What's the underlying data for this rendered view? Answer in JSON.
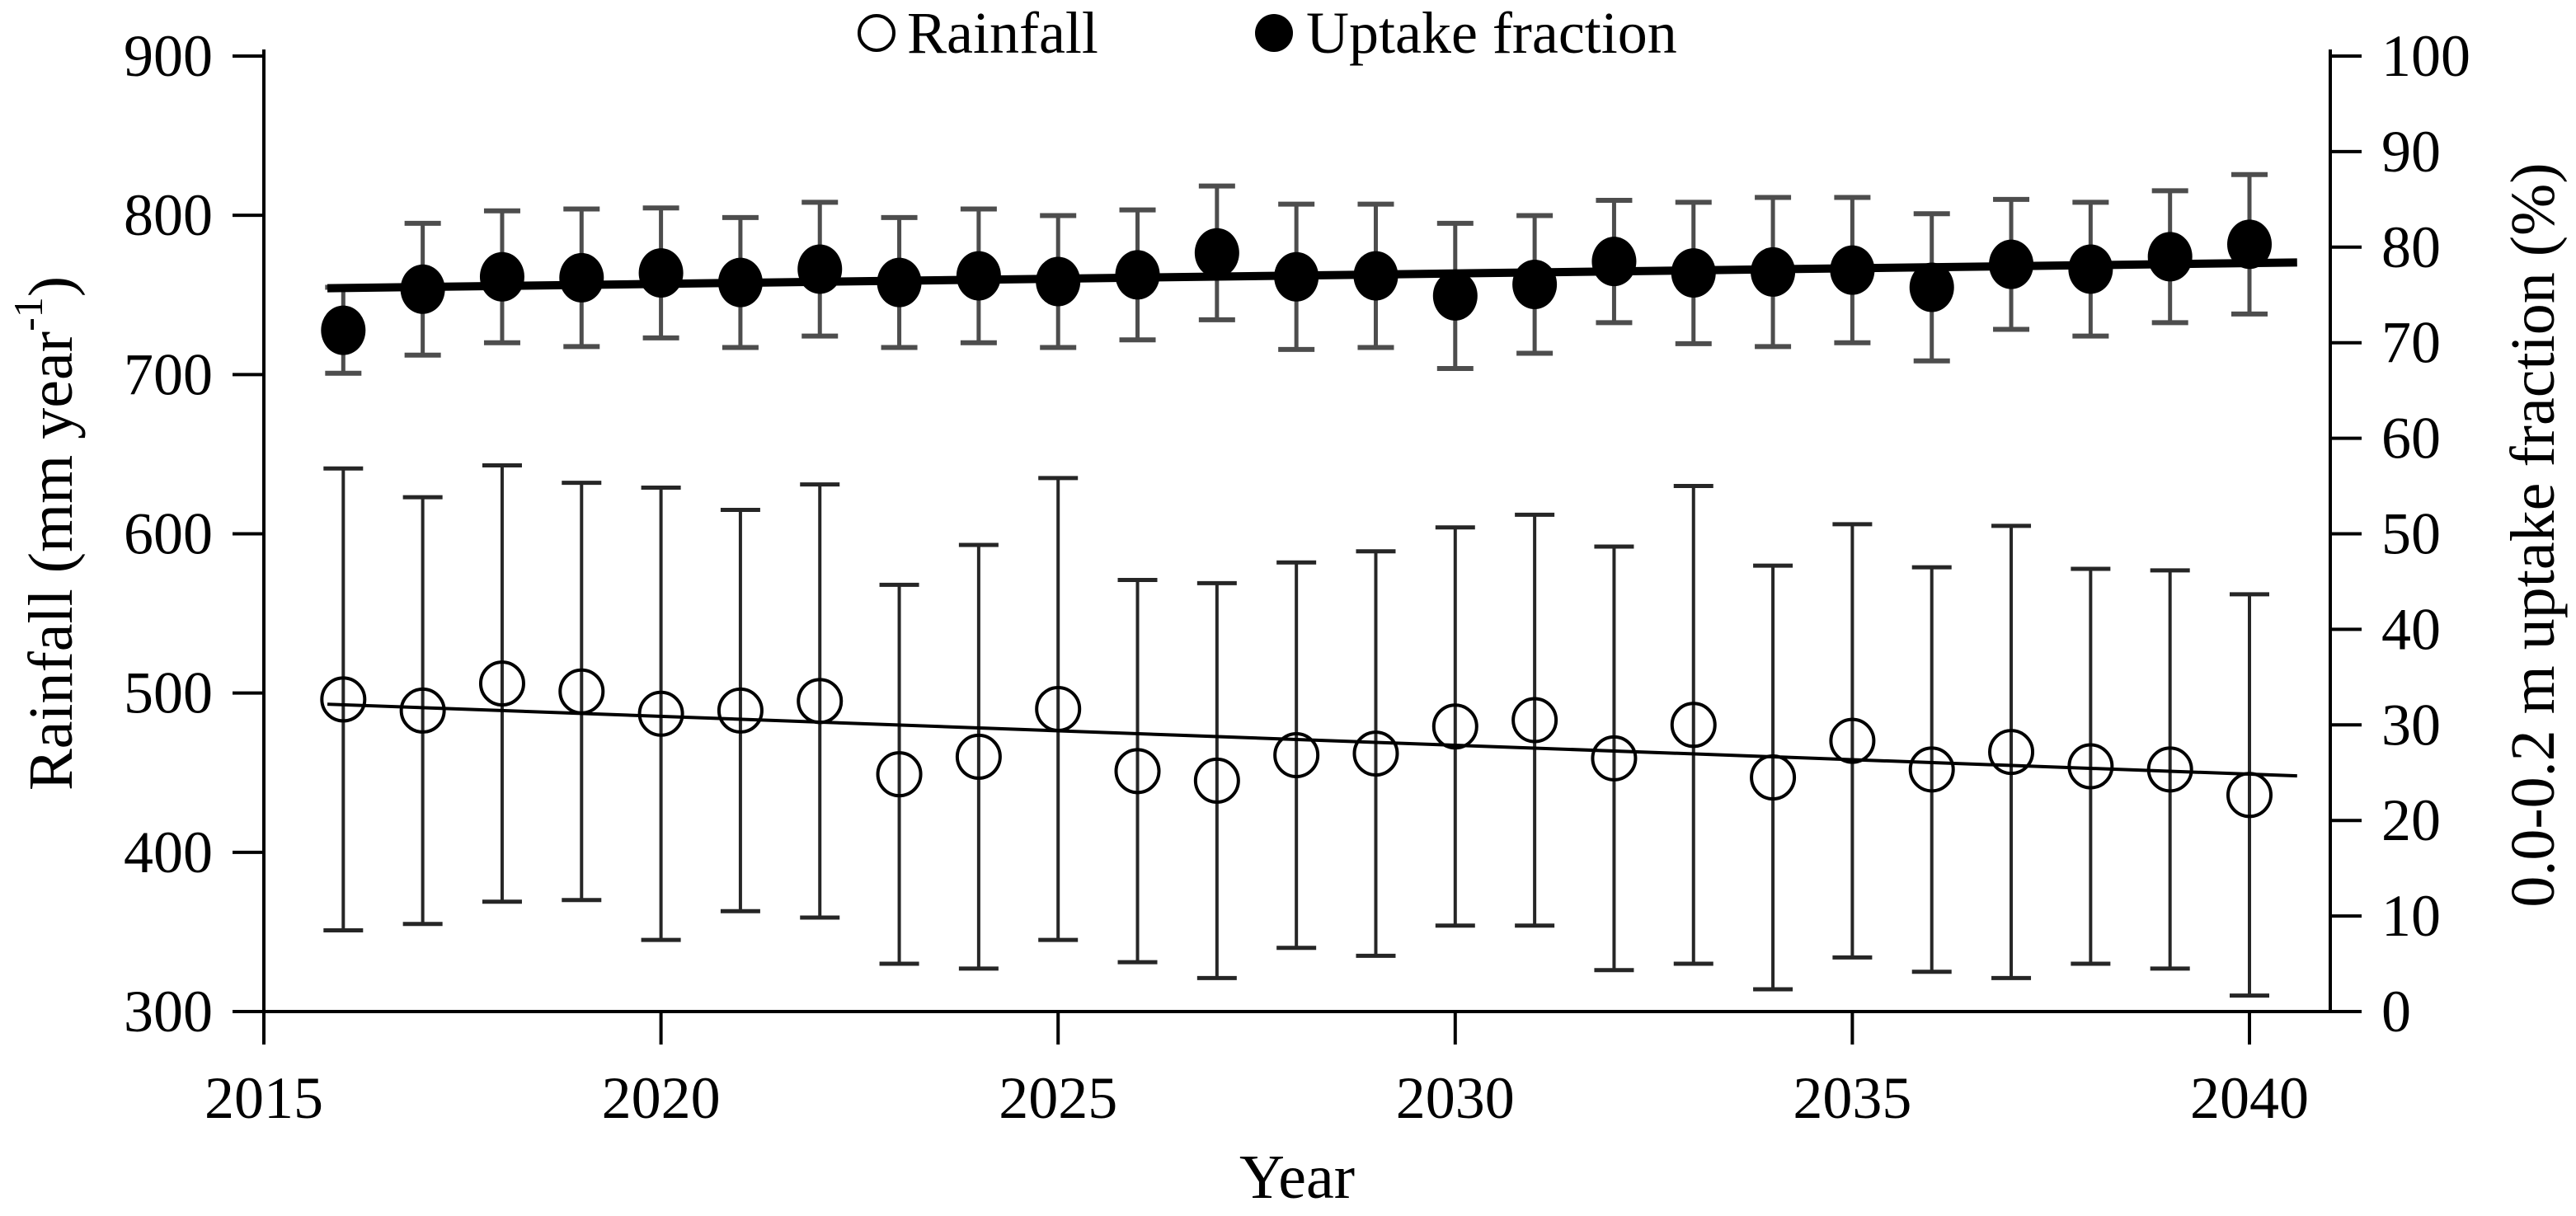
{
  "chart_data": {
    "type": "scatter",
    "title": "",
    "xlabel": "Year",
    "ylabel_left_parts": [
      "Rainfall (mm year",
      "-1",
      ")"
    ],
    "ylabel_right": "0.0-0.2 m uptake fraction (%)",
    "grid": false,
    "legend_position": "top-center",
    "legend": [
      {
        "label": "Rainfall",
        "marker": "open-circle"
      },
      {
        "label": "Uptake fraction",
        "marker": "filled-circle"
      }
    ],
    "x_ticks": [
      2015,
      2020,
      2025,
      2030,
      2035,
      2040
    ],
    "xlim": [
      2015,
      2041
    ],
    "ylim_left": [
      300,
      900
    ],
    "left_ticks": [
      300,
      400,
      500,
      600,
      700,
      800,
      900
    ],
    "ylim_right": [
      0,
      100
    ],
    "right_ticks": [
      0,
      10,
      20,
      30,
      40,
      50,
      60,
      70,
      80,
      90,
      100
    ],
    "years": [
      2016,
      2017,
      2018,
      2019,
      2020,
      2021,
      2022,
      2023,
      2024,
      2025,
      2026,
      2027,
      2028,
      2029,
      2030,
      2031,
      2032,
      2033,
      2034,
      2035,
      2036,
      2037,
      2038,
      2039,
      2040
    ],
    "series": [
      {
        "name": "Rainfall",
        "axis": "left",
        "marker": "open-circle",
        "values": [
          496,
          489,
          506,
          501,
          487,
          489,
          495,
          449,
          460,
          490,
          451,
          445,
          461,
          462,
          479,
          483,
          459,
          480,
          447,
          470,
          452,
          463,
          454,
          452,
          436
        ],
        "errors": [
          145,
          134,
          137,
          131,
          142,
          126,
          136,
          119,
          133,
          145,
          120,
          124,
          121,
          127,
          125,
          129,
          133,
          150,
          133,
          136,
          127,
          142,
          124,
          125,
          126
        ],
        "trend": {
          "x1": 2015.8,
          "y1": 493,
          "x2": 2040.6,
          "y2": 448
        }
      },
      {
        "name": "Uptake fraction",
        "axis": "right",
        "marker": "filled-circle",
        "values": [
          71.3,
          75.6,
          76.9,
          76.8,
          77.3,
          76.3,
          77.7,
          76.3,
          77.0,
          76.4,
          77.1,
          79.4,
          76.9,
          77.0,
          74.9,
          76.1,
          78.5,
          77.3,
          77.4,
          77.6,
          75.8,
          78.2,
          77.7,
          79.0,
          80.3
        ],
        "errors": [
          4.5,
          6.9,
          6.9,
          7.2,
          6.8,
          6.8,
          7.0,
          6.8,
          7.0,
          6.9,
          6.8,
          7.0,
          7.6,
          7.5,
          7.6,
          7.2,
          6.4,
          7.4,
          7.8,
          7.6,
          7.7,
          6.8,
          7.0,
          6.9,
          7.3
        ],
        "trend": {
          "x1": 2015.8,
          "y1": 75.7,
          "x2": 2040.6,
          "y2": 78.4
        }
      }
    ],
    "colors": {
      "axis": "#000000",
      "rainfall_error": "#262626",
      "uptake_error": "#4d4d4d",
      "marker_stroke": "#000000",
      "marker_fill": "#000000",
      "trend": "#000000"
    }
  }
}
